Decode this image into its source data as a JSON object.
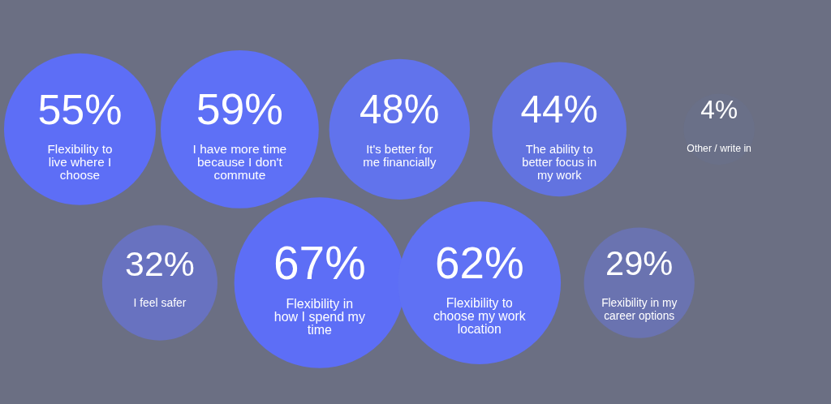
{
  "chart_data": {
    "type": "other",
    "categories": [
      "Flexibility to live where I choose",
      "I have more time because I don't commute",
      "It's better for me financially",
      "The ability to better focus in my work",
      "Other / write in",
      "I feel safer",
      "Flexibility in how I spend my time",
      "Flexibility to choose my work location",
      "Flexibility in my career options"
    ],
    "values": [
      55,
      59,
      48,
      44,
      4,
      32,
      67,
      62,
      29
    ],
    "value_labels": [
      "55%",
      "59%",
      "48%",
      "44%",
      "4%",
      "32%",
      "67%",
      "62%",
      "29%"
    ],
    "colors": [
      "#5d6ef6",
      "#5e70f6",
      "#6173ec",
      "#6273e0",
      "#6a7088",
      "#6872c0",
      "#5d6ef6",
      "#5f71f4",
      "#6a73b0"
    ]
  }
}
